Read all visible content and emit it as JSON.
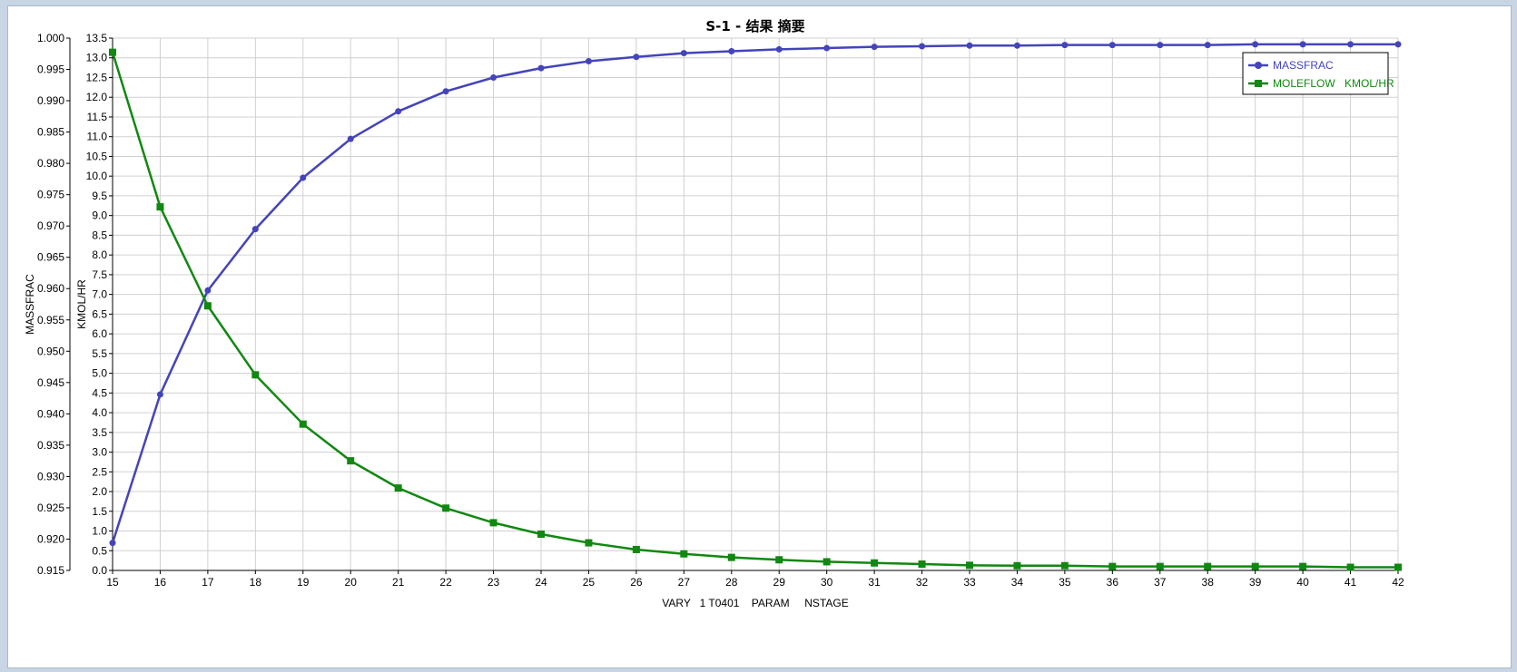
{
  "colors": {
    "massfrac": "#4444bb",
    "moleflow": "#118811",
    "grid": "#d0d0d0",
    "axis": "#000000"
  },
  "chart_data": {
    "type": "line",
    "title": "S-1 - 结果 摘要",
    "xlabel": "VARY   1 T0401    PARAM     NSTAGE",
    "ylabel_left": "MASSFRAC",
    "ylabel_right": "KMOL/HR",
    "xlim": [
      15,
      42
    ],
    "ylim_left": [
      0.915,
      1.0
    ],
    "ylim_right": [
      0.0,
      13.5
    ],
    "grid": true,
    "legend_position": "top-right",
    "x": [
      15,
      16,
      17,
      18,
      19,
      20,
      21,
      22,
      23,
      24,
      25,
      26,
      27,
      28,
      29,
      30,
      31,
      32,
      33,
      34,
      35,
      36,
      37,
      38,
      39,
      40,
      41,
      42
    ],
    "x_ticks": [
      "15",
      "16",
      "17",
      "18",
      "19",
      "20",
      "21",
      "22",
      "23",
      "24",
      "25",
      "26",
      "27",
      "28",
      "29",
      "30",
      "31",
      "32",
      "33",
      "34",
      "35",
      "36",
      "37",
      "38",
      "39",
      "40",
      "41",
      "42"
    ],
    "y_ticks_left": [
      "0.915",
      "0.920",
      "0.925",
      "0.930",
      "0.935",
      "0.940",
      "0.945",
      "0.950",
      "0.955",
      "0.960",
      "0.965",
      "0.970",
      "0.975",
      "0.980",
      "0.985",
      "0.990",
      "0.995",
      "1.000"
    ],
    "y_ticks_right": [
      "0.0",
      "0.5",
      "1.0",
      "1.5",
      "2.0",
      "2.5",
      "3.0",
      "3.5",
      "4.0",
      "4.5",
      "5.0",
      "5.5",
      "6.0",
      "6.5",
      "7.0",
      "7.5",
      "8.0",
      "8.5",
      "9.0",
      "9.5",
      "10.0",
      "10.5",
      "11.0",
      "11.5",
      "12.0",
      "12.5",
      "13.0",
      "13.5"
    ],
    "series": [
      {
        "name": "MASSFRAC",
        "axis": "left",
        "marker": "circle",
        "values": [
          0.9194,
          0.9431,
          0.9597,
          0.9695,
          0.9777,
          0.9839,
          0.9883,
          0.9915,
          0.9937,
          0.9952,
          0.9963,
          0.997,
          0.9976,
          0.9979,
          0.9982,
          0.9984,
          0.9986,
          0.9987,
          0.9988,
          0.9988,
          0.9989,
          0.9989,
          0.9989,
          0.9989,
          0.999,
          0.999,
          0.999,
          0.999
        ]
      },
      {
        "name": "MOLEFLOW",
        "unit": "KMOL/HR",
        "axis": "right",
        "marker": "square",
        "values": [
          13.14,
          9.22,
          6.71,
          4.96,
          3.71,
          2.78,
          2.09,
          1.58,
          1.21,
          0.92,
          0.7,
          0.53,
          0.42,
          0.33,
          0.27,
          0.22,
          0.19,
          0.16,
          0.13,
          0.12,
          0.12,
          0.1,
          0.1,
          0.1,
          0.1,
          0.1,
          0.08,
          0.08
        ]
      }
    ]
  }
}
